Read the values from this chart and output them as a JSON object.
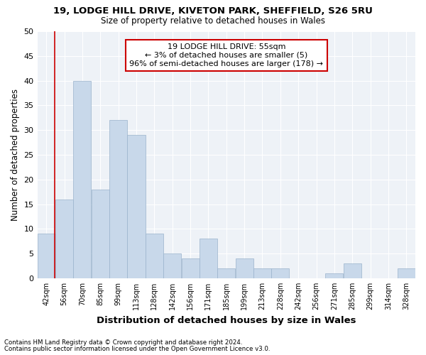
{
  "title1": "19, LODGE HILL DRIVE, KIVETON PARK, SHEFFIELD, S26 5RU",
  "title2": "Size of property relative to detached houses in Wales",
  "xlabel": "Distribution of detached houses by size in Wales",
  "ylabel": "Number of detached properties",
  "bar_labels": [
    "42sqm",
    "56sqm",
    "70sqm",
    "85sqm",
    "99sqm",
    "113sqm",
    "128sqm",
    "142sqm",
    "156sqm",
    "171sqm",
    "185sqm",
    "199sqm",
    "213sqm",
    "228sqm",
    "242sqm",
    "256sqm",
    "271sqm",
    "285sqm",
    "299sqm",
    "314sqm",
    "328sqm"
  ],
  "bar_values": [
    9,
    16,
    40,
    18,
    32,
    29,
    9,
    5,
    4,
    8,
    2,
    4,
    2,
    2,
    0,
    0,
    1,
    3,
    0,
    0,
    2
  ],
  "bar_color": "#c8d8ea",
  "bar_edge_color": "#9ab3cc",
  "annotation_box_color": "#cc0000",
  "annotation_line1": "19 LODGE HILL DRIVE: 55sqm",
  "annotation_line2": "← 3% of detached houses are smaller (5)",
  "annotation_line3": "96% of semi-detached houses are larger (178) →",
  "ylim": [
    0,
    50
  ],
  "yticks": [
    0,
    5,
    10,
    15,
    20,
    25,
    30,
    35,
    40,
    45,
    50
  ],
  "bg_color": "#eef2f7",
  "grid_color": "#ffffff",
  "footer1": "Contains HM Land Registry data © Crown copyright and database right 2024.",
  "footer2": "Contains public sector information licensed under the Open Government Licence v3.0."
}
